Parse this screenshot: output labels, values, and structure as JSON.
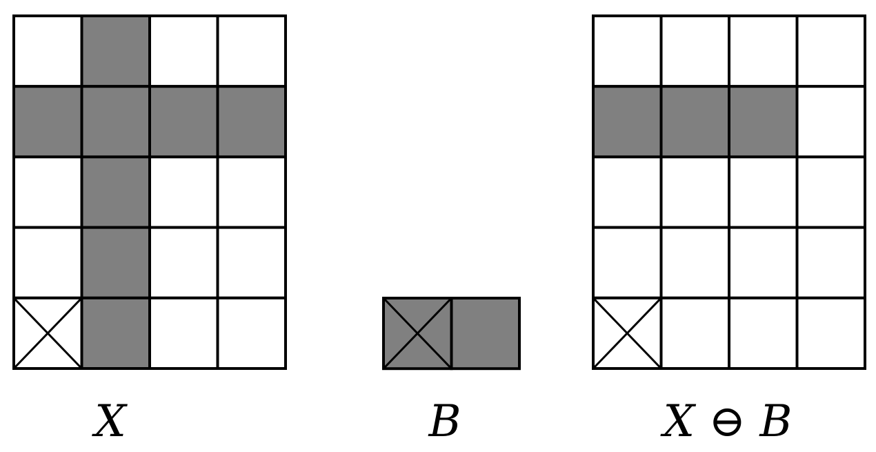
{
  "colors": {
    "filled": "#808080",
    "empty": "#ffffff",
    "line": "#000000"
  },
  "panels": [
    {
      "id": "x",
      "label": "X",
      "grid": [
        [
          0,
          1,
          0,
          0
        ],
        [
          1,
          1,
          1,
          1
        ],
        [
          0,
          1,
          0,
          0
        ],
        [
          0,
          1,
          0,
          0
        ],
        [
          0,
          1,
          0,
          0
        ]
      ],
      "origin": {
        "row": 4,
        "col": 0
      }
    },
    {
      "id": "b",
      "label": "B",
      "grid": [
        [
          1,
          1
        ]
      ],
      "origin": {
        "row": 0,
        "col": 0
      }
    },
    {
      "id": "erosion",
      "label": "X ⊖ B",
      "grid": [
        [
          0,
          0,
          0,
          0
        ],
        [
          1,
          1,
          1,
          0
        ],
        [
          0,
          0,
          0,
          0
        ],
        [
          0,
          0,
          0,
          0
        ],
        [
          0,
          0,
          0,
          0
        ]
      ],
      "origin": {
        "row": 4,
        "col": 0
      }
    }
  ]
}
